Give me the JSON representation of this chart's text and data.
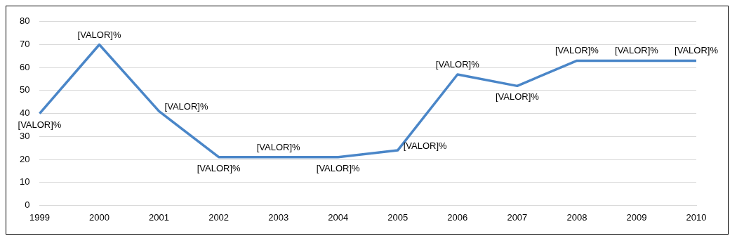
{
  "chart_data": {
    "type": "line",
    "categories": [
      "1999",
      "2000",
      "2001",
      "2002",
      "2003",
      "2004",
      "2005",
      "2006",
      "2007",
      "2008",
      "2009",
      "2010"
    ],
    "series": [
      {
        "color": "#4a86c8",
        "values": [
          40,
          70,
          41,
          21,
          21,
          21,
          24,
          57,
          52,
          63,
          63,
          63
        ],
        "value_labels": [
          "[VALOR]%",
          "[VALOR]%",
          "[VALOR]%",
          "[VALOR]%",
          "[VALOR]%",
          "[VALOR]%",
          "[VALOR]%",
          "[VALOR]%",
          "[VALOR]%",
          "[VALOR]%",
          "[VALOR]%",
          "[VALOR]%"
        ]
      }
    ],
    "ylim": [
      0,
      80
    ],
    "yticks": [
      0,
      10,
      20,
      30,
      40,
      50,
      60,
      70,
      80
    ],
    "grid": "y",
    "legend": false,
    "marker": "none",
    "line_style": "solid"
  }
}
